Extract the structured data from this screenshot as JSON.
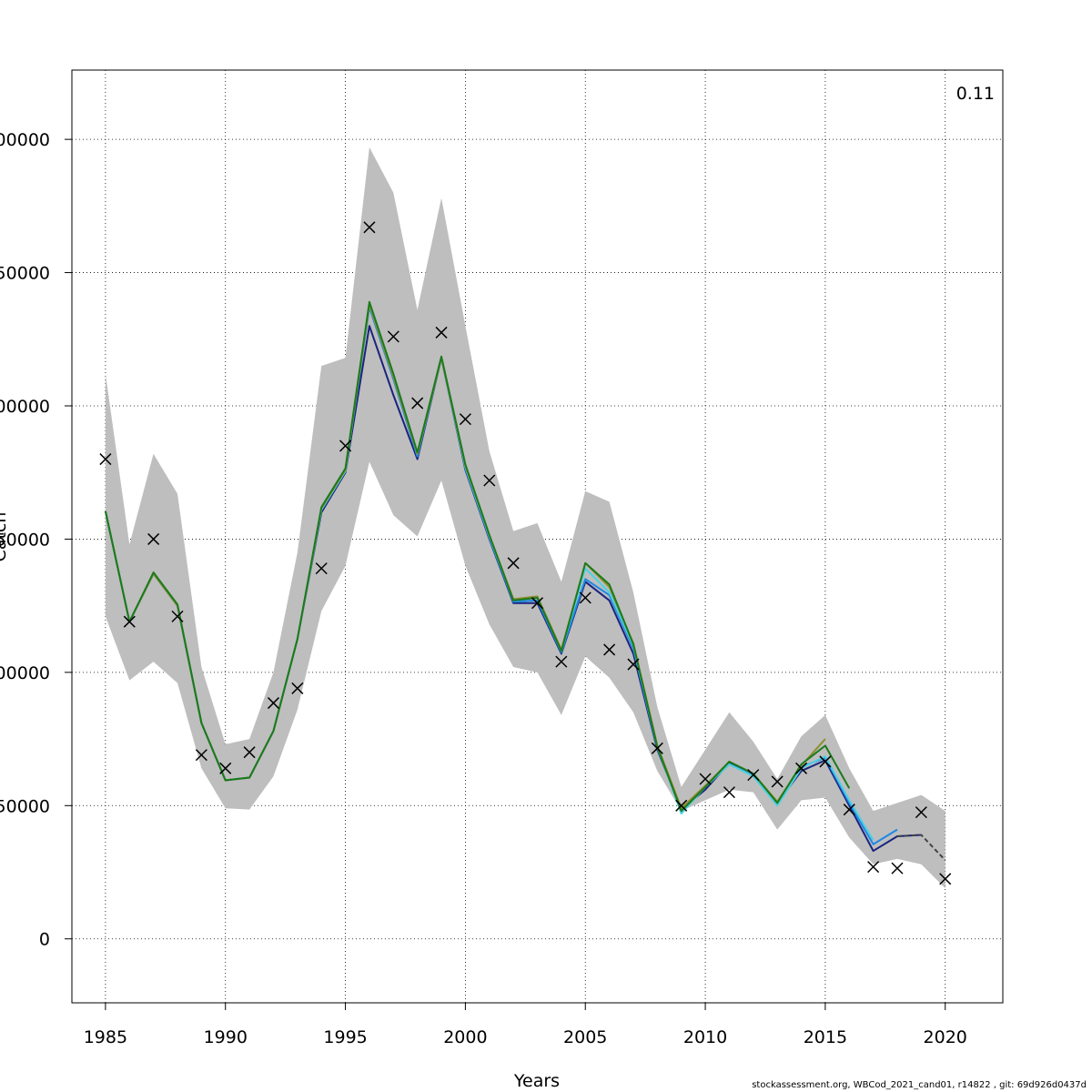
{
  "chart_data": {
    "type": "line",
    "title": "",
    "xlabel": "Years",
    "ylabel": "Catch",
    "annotation": "0.11",
    "xlim": [
      1983.6,
      2022.4
    ],
    "ylim": [
      -24000,
      326000
    ],
    "xticks": [
      1985,
      1990,
      1995,
      2000,
      2005,
      2010,
      2015,
      2020
    ],
    "yticks": [
      {
        "value": 0,
        "label": "0"
      },
      {
        "value": 50000,
        "label": "50000"
      },
      {
        "value": 100000,
        "label": "100000"
      },
      {
        "value": 150000,
        "label": "150000"
      },
      {
        "value": 200000,
        "label": "200000"
      },
      {
        "value": 250000,
        "label": "250000"
      },
      {
        "value": 300000,
        "label": "300000"
      }
    ],
    "grid": true,
    "band": {
      "name": "confidence interval",
      "color": "#bebebe",
      "x": [
        1985,
        1986,
        1987,
        1988,
        1989,
        1990,
        1991,
        1992,
        1993,
        1994,
        1995,
        1996,
        1997,
        1998,
        1999,
        2000,
        2001,
        2002,
        2003,
        2004,
        2005,
        2006,
        2007,
        2008,
        2009,
        2010,
        2011,
        2012,
        2013,
        2014,
        2015,
        2016,
        2017,
        2018,
        2019,
        2020
      ],
      "upper": [
        212000,
        148000,
        182000,
        167000,
        102000,
        73000,
        75000,
        100000,
        145000,
        215000,
        218000,
        297000,
        280000,
        236000,
        278000,
        230000,
        183000,
        153000,
        156000,
        134000,
        168000,
        164000,
        130000,
        87000,
        57000,
        71000,
        85000,
        74000,
        60000,
        76000,
        84000,
        64000,
        48000,
        51000,
        54000,
        48000
      ],
      "lower": [
        121000,
        97000,
        104000,
        96000,
        64000,
        49000,
        48500,
        61000,
        86000,
        123000,
        140000,
        179000,
        159000,
        151000,
        172000,
        140000,
        118000,
        102000,
        100000,
        84000,
        106000,
        98000,
        85000,
        63000,
        48000,
        52000,
        56000,
        55000,
        41000,
        52000,
        53000,
        38000,
        28000,
        30000,
        28000,
        19000
      ]
    },
    "series": [
      {
        "name": "run-navy",
        "color": "#1a237e",
        "x": [
          1985,
          1986,
          1987,
          1988,
          1989,
          1990,
          1991,
          1992,
          1993,
          1994,
          1995,
          1996,
          1997,
          1998,
          1999,
          2000,
          2001,
          2002,
          2003,
          2004,
          2005,
          2006,
          2007,
          2008,
          2009,
          2010,
          2011,
          2012,
          2013,
          2014,
          2015,
          2016,
          2017,
          2018,
          2019
        ],
        "values": [
          160500,
          119000,
          137000,
          125000,
          81000,
          59500,
          60500,
          78000,
          112500,
          160000,
          175000,
          230000,
          204000,
          180000,
          218000,
          176000,
          150000,
          126000,
          126000,
          107000,
          134000,
          127000,
          107000,
          71000,
          48500,
          56000,
          66000,
          61500,
          51000,
          63000,
          67000,
          50000,
          33000,
          38500,
          39000
        ]
      },
      {
        "name": "run-blue",
        "color": "#1e88e5",
        "x": [
          1985,
          1986,
          1987,
          1988,
          1989,
          1990,
          1991,
          1992,
          1993,
          1994,
          1995,
          1996,
          1997,
          1998,
          1999,
          2000,
          2001,
          2002,
          2003,
          2004,
          2005,
          2006,
          2007,
          2008,
          2009,
          2010,
          2011,
          2012,
          2013,
          2014,
          2015,
          2016,
          2017,
          2018
        ],
        "values": [
          160500,
          119000,
          137000,
          125000,
          81000,
          59500,
          60500,
          78000,
          112500,
          161000,
          175500,
          237000,
          210000,
          181000,
          218000,
          176500,
          150500,
          126500,
          127000,
          107500,
          135000,
          129000,
          109000,
          71500,
          48500,
          57000,
          65500,
          61500,
          50500,
          64500,
          68000,
          51000,
          35500,
          41000
        ]
      },
      {
        "name": "run-cyan",
        "color": "#4dd0e1",
        "x": [
          1985,
          1986,
          1987,
          1988,
          1989,
          1990,
          1991,
          1992,
          1993,
          1994,
          1995,
          1996,
          1997,
          1998,
          1999,
          2000,
          2001,
          2002,
          2003,
          2004,
          2005,
          2006,
          2007,
          2008,
          2009,
          2010,
          2011,
          2012,
          2013,
          2014,
          2015,
          2016,
          2017
        ],
        "values": [
          160500,
          119000,
          137000,
          125000,
          81000,
          59500,
          60500,
          78000,
          112500,
          161000,
          175500,
          238000,
          211000,
          182000,
          218000,
          177000,
          151000,
          127000,
          128000,
          108000,
          139000,
          130000,
          110000,
          72000,
          47000,
          57000,
          65500,
          61000,
          50000,
          64000,
          68500,
          52000,
          37000
        ]
      },
      {
        "name": "run-olive",
        "color": "#8e8e2e",
        "x": [
          1985,
          1986,
          1987,
          1988,
          1989,
          1990,
          1991,
          1992,
          1993,
          1994,
          1995,
          1996,
          1997,
          1998,
          1999,
          2000,
          2001,
          2002,
          2003,
          2004,
          2005,
          2006,
          2007,
          2008,
          2009,
          2010,
          2011,
          2012,
          2013,
          2014,
          2015
        ],
        "values": [
          160500,
          119000,
          137000,
          125000,
          81000,
          59500,
          60500,
          78000,
          112500,
          161500,
          176000,
          238000,
          211000,
          182000,
          218000,
          177500,
          151500,
          127500,
          128500,
          108500,
          141000,
          132000,
          111000,
          72500,
          49000,
          57500,
          66500,
          62000,
          51500,
          65000,
          75000
        ]
      },
      {
        "name": "run-green",
        "color": "#1b7a1b",
        "x": [
          1985,
          1986,
          1987,
          1988,
          1989,
          1990,
          1991,
          1992,
          1993,
          1994,
          1995,
          1996,
          1997,
          1998,
          1999,
          2000,
          2001,
          2002,
          2003,
          2004,
          2005,
          2006,
          2007,
          2008,
          2009,
          2010,
          2011,
          2012,
          2013,
          2014,
          2015,
          2016
        ],
        "values": [
          160500,
          119000,
          137500,
          125500,
          81000,
          59500,
          60500,
          78000,
          112500,
          162000,
          176500,
          239000,
          212000,
          182500,
          218500,
          178000,
          151500,
          127000,
          128000,
          108000,
          141000,
          133000,
          110500,
          72000,
          48000,
          57000,
          66500,
          62000,
          51000,
          65500,
          72500,
          56500
        ]
      },
      {
        "name": "run-dashed",
        "color": "#444444",
        "dashed": true,
        "x": [
          2018,
          2019,
          2020
        ],
        "values": [
          38500,
          39000,
          29500
        ]
      }
    ],
    "observed": {
      "name": "observed catch",
      "marker": "x",
      "x": [
        1985,
        1986,
        1987,
        1988,
        1989,
        1990,
        1991,
        1992,
        1993,
        1994,
        1995,
        1996,
        1997,
        1998,
        1999,
        2000,
        2001,
        2002,
        2003,
        2004,
        2005,
        2006,
        2007,
        2008,
        2009,
        2010,
        2011,
        2012,
        2013,
        2014,
        2015,
        2016,
        2017,
        2018,
        2019,
        2020
      ],
      "values": [
        180000,
        119000,
        150000,
        121000,
        69000,
        64000,
        70000,
        88500,
        94000,
        139000,
        185000,
        267000,
        226000,
        201000,
        227500,
        195000,
        172000,
        141000,
        126000,
        104000,
        128000,
        108500,
        103000,
        71500,
        50000,
        60000,
        55000,
        61500,
        59000,
        64000,
        66500,
        48500,
        27000,
        26500,
        47500,
        22500
      ]
    }
  },
  "footer_text": "stockassessment.org, WBCod_2021_cand01, r14822 , git: 69d926d0437d"
}
